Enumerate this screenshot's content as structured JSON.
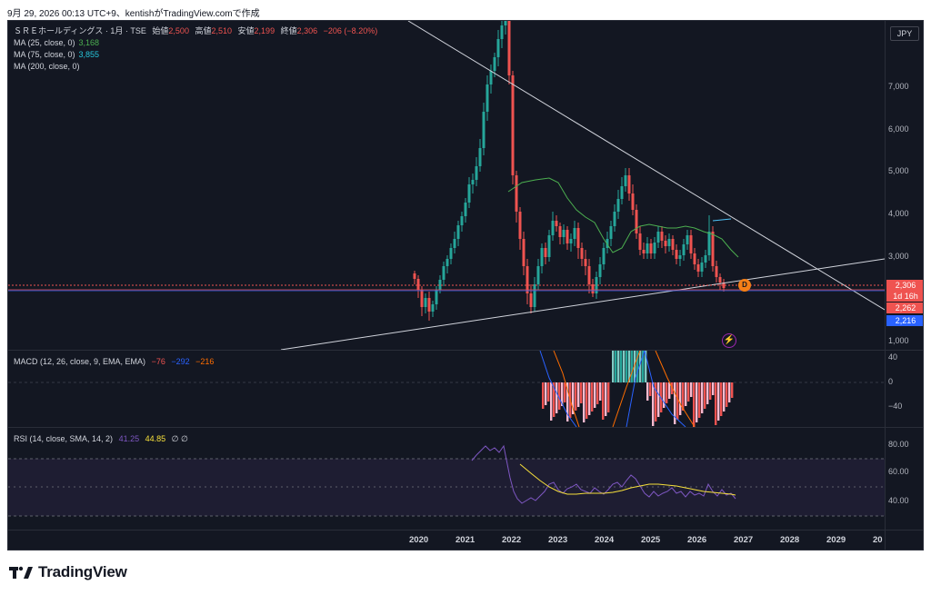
{
  "caption": "9月 29, 2026 00:13 UTC+9、kentishがTradingView.comで作成",
  "symbol": {
    "title": "ＳＲＥホールディングス · 1月 · TSE",
    "open_label": "始値",
    "open": "2,500",
    "high_label": "高値",
    "high": "2,510",
    "low_label": "安値",
    "low": "2,199",
    "close_label": "終値",
    "close": "2,306",
    "change": "−206 (−8.20%)"
  },
  "indicators": {
    "ma25": {
      "label": "MA (25, close, 0)",
      "value": "3,168"
    },
    "ma75": {
      "label": "MA (75, close, 0)",
      "value": "3,855"
    },
    "ma200": {
      "label": "MA (200, close, 0)",
      "value": ""
    },
    "macd": {
      "label": "MACD (12, 26, close, 9, EMA, EMA)",
      "v1": "−76",
      "v2": "−292",
      "v3": "−216"
    },
    "rsi": {
      "label": "RSI (14, close, SMA, 14, 2)",
      "v1": "41.25",
      "v2": "44.85",
      "icons": "∅ ∅"
    }
  },
  "price_axis": {
    "currency": "JPY",
    "ticks": [
      {
        "label": "7,000",
        "value": 7000
      },
      {
        "label": "6,000",
        "value": 6000
      },
      {
        "label": "5,000",
        "value": 5000
      },
      {
        "label": "4,000",
        "value": 4000
      },
      {
        "label": "3,000",
        "value": 3000
      },
      {
        "label": "1,000",
        "value": 1000
      }
    ],
    "last_price": "2,306",
    "countdown": "1d 16h",
    "price_2": "2,262",
    "price_3": "2,216"
  },
  "macd_axis": {
    "ticks": [
      "40",
      "0",
      "−40"
    ]
  },
  "rsi_axis": {
    "ticks": [
      "80.00",
      "60.00",
      "40.00"
    ]
  },
  "time_axis": [
    "2020",
    "2021",
    "2022",
    "2023",
    "2024",
    "2025",
    "2026",
    "2027",
    "2028",
    "2029",
    "20"
  ],
  "dividend_badge": "D",
  "footer": {
    "brand": "TradingView"
  },
  "colors": {
    "up": "#26a69a",
    "down": "#ef5350",
    "ma25": "#4caf50",
    "ma75": "#2196f3",
    "bg": "#131722"
  }
}
